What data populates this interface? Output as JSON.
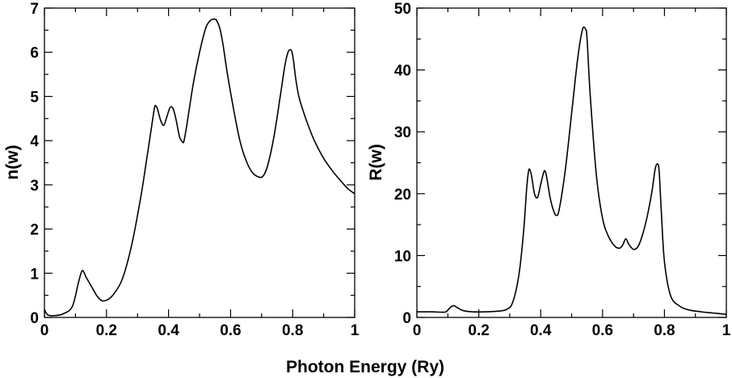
{
  "shared_xlabel": "Photon Energy (Ry)",
  "chart_data": [
    {
      "type": "line",
      "title": "",
      "xlabel": "Photon Energy (Ry)",
      "ylabel": "n(w)",
      "xlim": [
        0,
        1
      ],
      "ylim": [
        0,
        7
      ],
      "xticks": [
        0,
        0.2,
        0.4,
        0.6,
        0.8,
        1
      ],
      "xtick_labels": [
        "0",
        "0.2",
        "0.4",
        "0.6",
        "0.8",
        "1"
      ],
      "yticks": [
        0,
        1,
        2,
        3,
        4,
        5,
        6,
        7
      ],
      "ytick_labels": [
        "0",
        "1",
        "2",
        "3",
        "4",
        "5",
        "6",
        "7"
      ],
      "grid": false,
      "series": [
        {
          "name": "n(w)",
          "color": "#000000",
          "x": [
            0,
            0.01,
            0.03,
            0.06,
            0.09,
            0.11,
            0.122,
            0.135,
            0.15,
            0.17,
            0.185,
            0.2,
            0.22,
            0.25,
            0.28,
            0.31,
            0.33,
            0.345,
            0.355,
            0.36,
            0.365,
            0.375,
            0.385,
            0.395,
            0.405,
            0.415,
            0.425,
            0.435,
            0.445,
            0.45,
            0.46,
            0.48,
            0.5,
            0.52,
            0.535,
            0.548,
            0.555,
            0.565,
            0.575,
            0.59,
            0.61,
            0.63,
            0.65,
            0.67,
            0.69,
            0.705,
            0.72,
            0.74,
            0.76,
            0.775,
            0.785,
            0.793,
            0.798,
            0.803,
            0.81,
            0.82,
            0.835,
            0.85,
            0.87,
            0.9,
            0.93,
            0.96,
            0.98,
            1.0
          ],
          "values": [
            0.18,
            0.06,
            0.04,
            0.08,
            0.25,
            0.8,
            1.06,
            0.9,
            0.72,
            0.48,
            0.38,
            0.39,
            0.5,
            0.85,
            1.6,
            2.7,
            3.6,
            4.3,
            4.75,
            4.78,
            4.7,
            4.45,
            4.35,
            4.55,
            4.75,
            4.72,
            4.45,
            4.1,
            3.97,
            4.0,
            4.4,
            5.3,
            6.0,
            6.55,
            6.72,
            6.75,
            6.72,
            6.55,
            6.2,
            5.5,
            4.7,
            4.0,
            3.55,
            3.28,
            3.18,
            3.2,
            3.45,
            4.1,
            5.0,
            5.7,
            6.0,
            6.06,
            6.0,
            5.8,
            5.4,
            5.0,
            4.65,
            4.35,
            4.0,
            3.6,
            3.3,
            3.05,
            2.9,
            2.8
          ]
        }
      ]
    },
    {
      "type": "line",
      "title": "",
      "xlabel": "Photon Energy (Ry)",
      "ylabel": "R(w)",
      "xlim": [
        0,
        1
      ],
      "ylim": [
        0,
        50
      ],
      "xticks": [
        0,
        0.2,
        0.4,
        0.6,
        0.8,
        1
      ],
      "xtick_labels": [
        "0",
        "0.2",
        "0.4",
        "0.6",
        "0.8",
        "1"
      ],
      "yticks": [
        0,
        10,
        20,
        30,
        40,
        50
      ],
      "ytick_labels": [
        "0",
        "10",
        "20",
        "30",
        "40",
        "50"
      ],
      "grid": false,
      "series": [
        {
          "name": "R(w)",
          "color": "#000000",
          "x": [
            0,
            0.05,
            0.09,
            0.1,
            0.11,
            0.12,
            0.13,
            0.15,
            0.18,
            0.22,
            0.26,
            0.29,
            0.31,
            0.33,
            0.345,
            0.355,
            0.362,
            0.37,
            0.38,
            0.39,
            0.4,
            0.41,
            0.415,
            0.42,
            0.43,
            0.44,
            0.45,
            0.46,
            0.48,
            0.5,
            0.52,
            0.535,
            0.545,
            0.55,
            0.56,
            0.58,
            0.6,
            0.62,
            0.64,
            0.655,
            0.665,
            0.675,
            0.685,
            0.7,
            0.715,
            0.73,
            0.745,
            0.76,
            0.77,
            0.778,
            0.783,
            0.79,
            0.8,
            0.82,
            0.85,
            0.88,
            0.92,
            0.96,
            1.0
          ],
          "values": [
            0.9,
            0.9,
            0.85,
            1.2,
            1.7,
            1.9,
            1.6,
            1.1,
            0.9,
            0.9,
            1.0,
            1.3,
            2.5,
            7,
            14,
            21,
            23.9,
            23,
            20,
            19.4,
            21.5,
            23.5,
            23.6,
            22.5,
            19.5,
            17.5,
            16.5,
            17.5,
            24,
            33,
            42,
            46.5,
            46.6,
            45,
            36,
            23,
            16,
            13,
            11.5,
            11.2,
            11.7,
            12.7,
            11.8,
            11.0,
            11.5,
            13.5,
            16.5,
            20.5,
            24,
            24.8,
            23.5,
            17,
            9,
            3.5,
            1.8,
            1.2,
            0.9,
            0.7,
            0.5
          ]
        }
      ]
    }
  ]
}
